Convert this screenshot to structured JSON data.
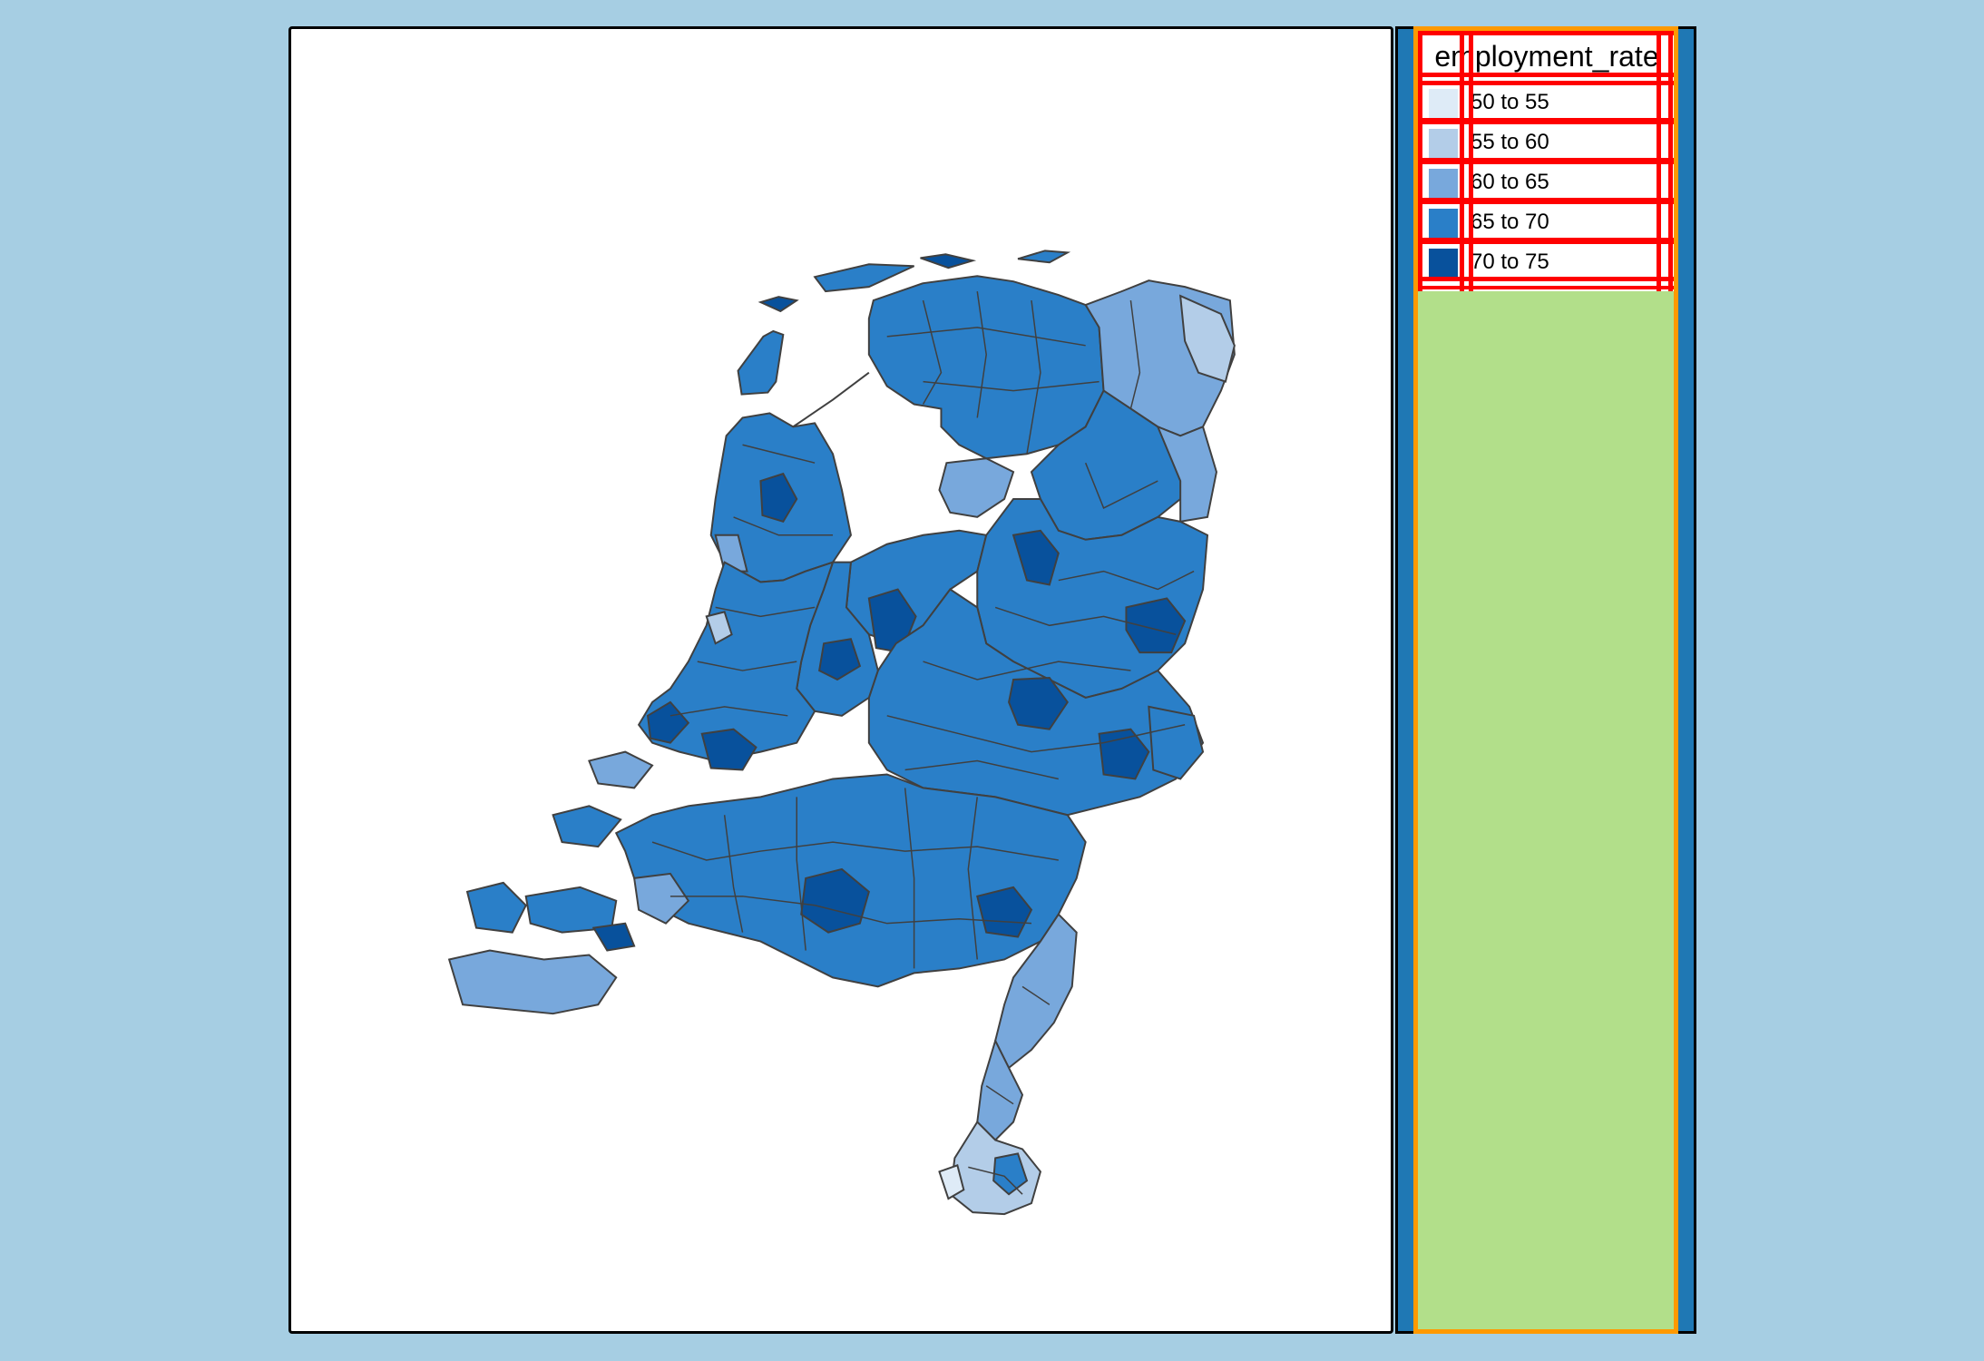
{
  "legend": {
    "title": "employment_rate",
    "items": [
      {
        "label": "50 to 55",
        "color": "#deebf7"
      },
      {
        "label": "55 to 60",
        "color": "#b3cde8"
      },
      {
        "label": "60 to 65",
        "color": "#78a8dc"
      },
      {
        "label": "65 to 70",
        "color": "#2a7fc8"
      },
      {
        "label": "70 to 75",
        "color": "#08519c"
      }
    ]
  },
  "colors": {
    "background": "#a6cee3",
    "panel": "#1f78b4",
    "legend_fill": "#b2df8a",
    "legend_border": "#ff9900",
    "grid_lines": "#ff0000",
    "borders": "#404040"
  }
}
